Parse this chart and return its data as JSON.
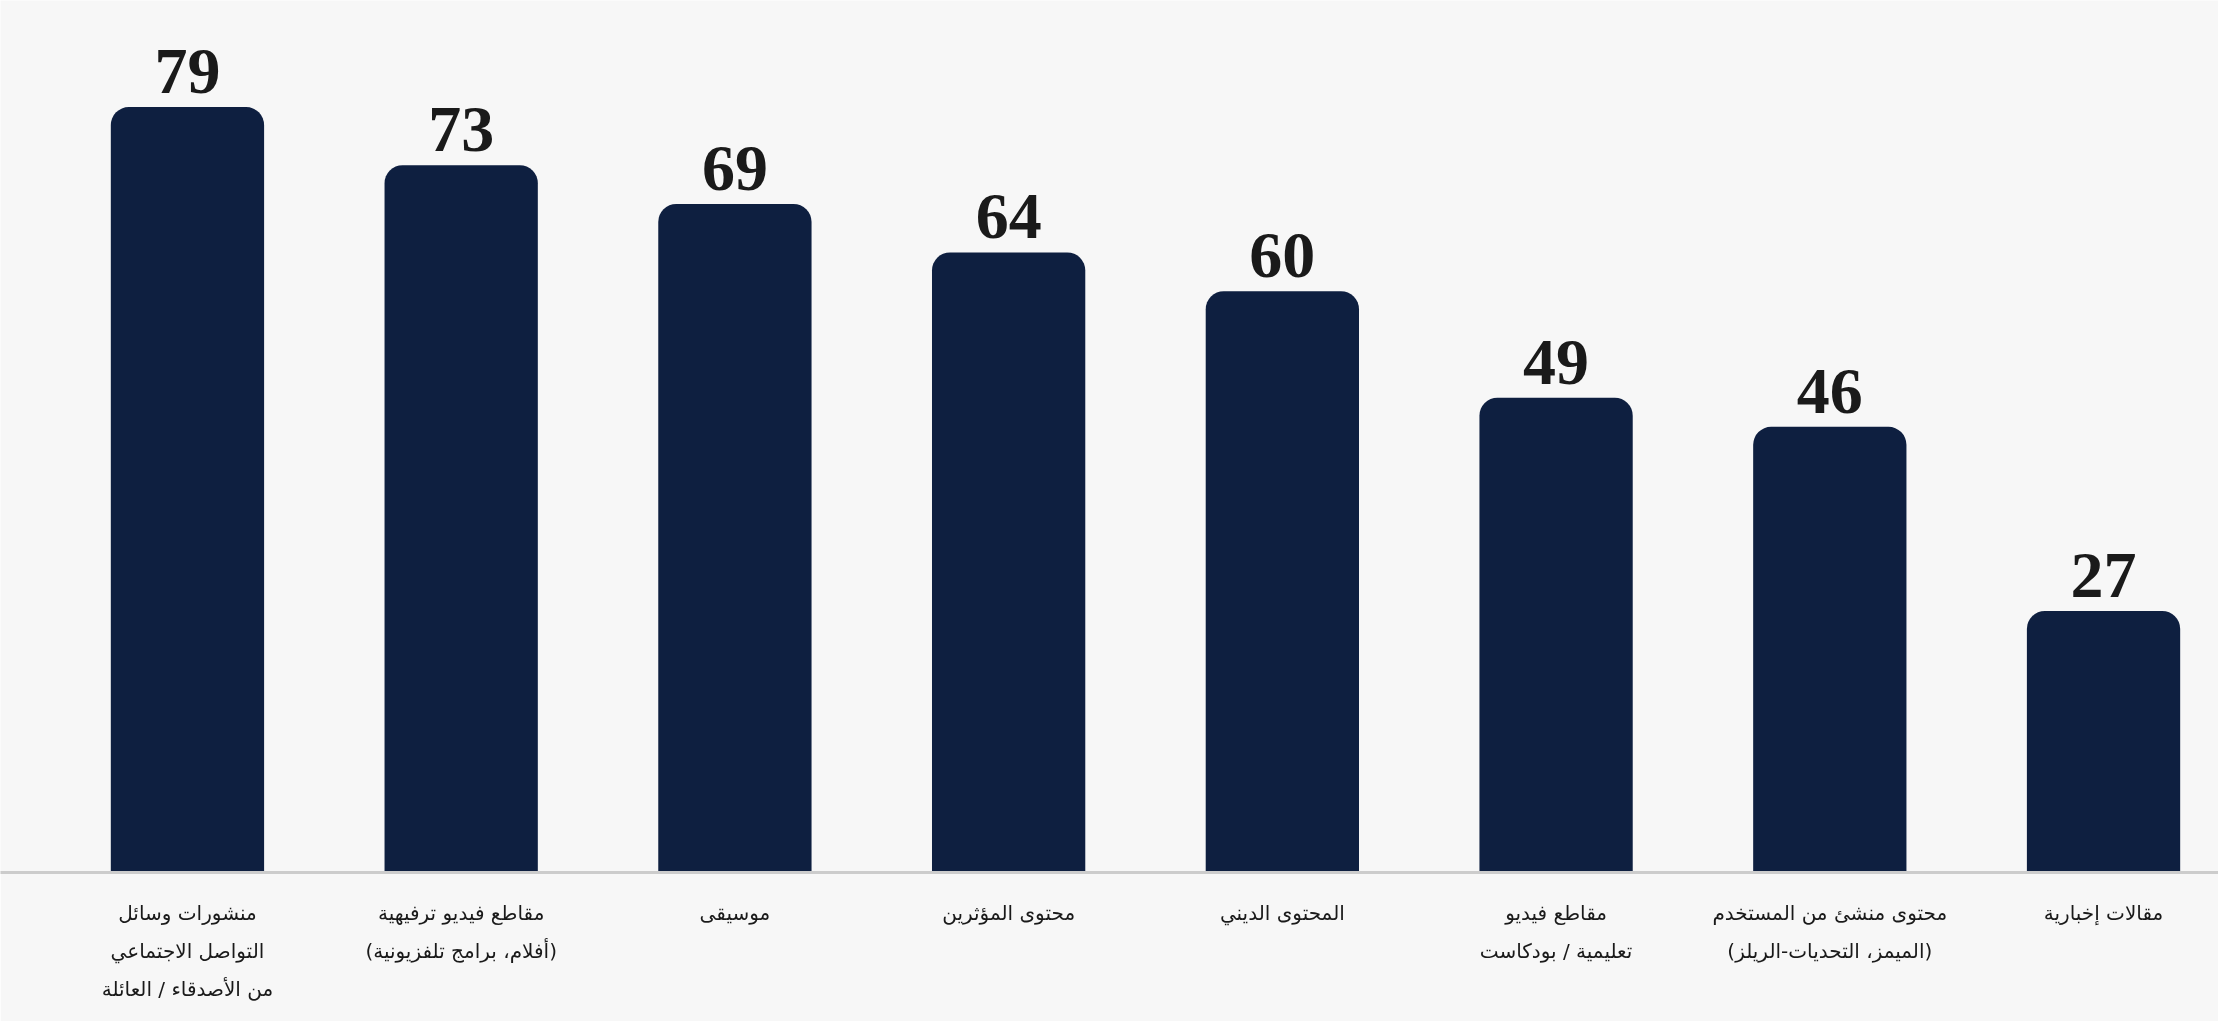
{
  "chart_data": {
    "type": "bar",
    "categories": [
      "منشورات وسائل\nالتواصل الاجتماعي\nمن الأصدقاء / العائلة",
      "مقاطع فيديو ترفيهية\n(أفلام، برامج تلفزيونية)",
      "موسيقى",
      "محتوى المؤثرين",
      "المحتوى الديني",
      "مقاطع فيديو\nتعليمية / بودكاست",
      "محتوى منشئ من المستخدم\n(الميمز، التحديات-الريلز)",
      "مقالات إخبارية"
    ],
    "values": [
      79,
      73,
      69,
      64,
      60,
      49,
      46,
      27
    ],
    "color": "#0e1f40",
    "ylim": [
      0,
      90
    ],
    "tick_labels": "x",
    "grid": false,
    "data_labels": true
  }
}
